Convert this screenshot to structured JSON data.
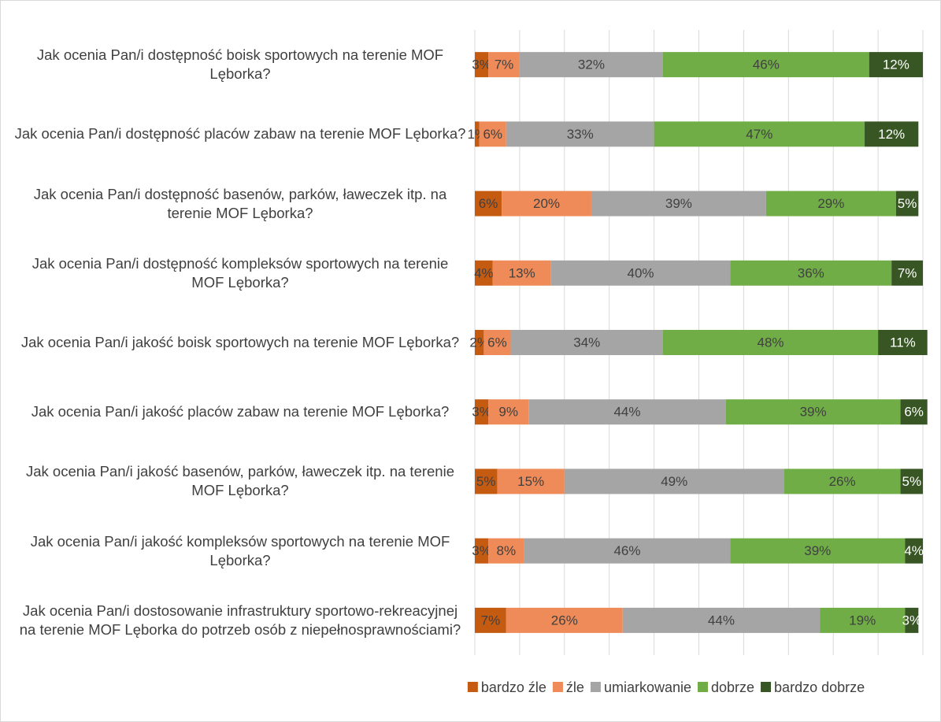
{
  "chart_data": {
    "type": "stacked_bar_horizontal",
    "categories": [
      "Jak ocenia Pan/i dostępność boisk sportowych na terenie MOF Lęborka?",
      "Jak ocenia Pan/i dostępność placów zabaw na terenie MOF Lęborka?",
      "Jak ocenia Pan/i dostępność basenów, parków, ławeczek itp. na terenie MOF Lęborka?",
      "Jak ocenia Pan/i dostępność kompleksów sportowych na terenie MOF Lęborka?",
      "Jak ocenia Pan/i jakość boisk sportowych na terenie MOF Lęborka?",
      "Jak ocenia Pan/i jakość placów zabaw na terenie MOF Lęborka?",
      "Jak ocenia Pan/i jakość basenów, parków, ławeczek itp. na terenie MOF Lęborka?",
      "Jak ocenia Pan/i jakość kompleksów sportowych na terenie MOF Lęborka?",
      "Jak ocenia Pan/i dostosowanie infrastruktury sportowo-rekreacyjnej na terenie MOF Lęborka do potrzeb osób z niepełnosprawnościami?"
    ],
    "series": [
      {
        "name": "bardzo źle",
        "color": "#c55a11",
        "label_color": "#404040",
        "values": [
          3,
          1,
          6,
          4,
          2,
          3,
          5,
          3,
          7
        ],
        "value_labels": [
          "3%",
          "1%",
          "6%",
          "4%",
          "2%",
          "3%",
          "5%",
          "3%",
          "7%"
        ]
      },
      {
        "name": "źle",
        "color": "#ef8b58",
        "label_color": "#404040",
        "values": [
          7,
          6,
          20,
          13,
          6,
          9,
          15,
          8,
          26
        ],
        "value_labels": [
          "7%",
          "6%",
          "20%",
          "13%",
          "6%",
          "9%",
          "15%",
          "8%",
          "26%"
        ]
      },
      {
        "name": "umiarkowanie",
        "color": "#a5a5a5",
        "label_color": "#404040",
        "values": [
          32,
          33,
          39,
          40,
          34,
          44,
          49,
          46,
          44
        ],
        "value_labels": [
          "32%",
          "33%",
          "39%",
          "40%",
          "34%",
          "44%",
          "49%",
          "46%",
          "44%"
        ]
      },
      {
        "name": "dobrze",
        "color": "#70ad47",
        "label_color": "#404040",
        "values": [
          46,
          47,
          29,
          36,
          48,
          39,
          26,
          39,
          19
        ],
        "value_labels": [
          "46%",
          "47%",
          "29%",
          "36%",
          "48%",
          "39%",
          "26%",
          "39%",
          "19%"
        ]
      },
      {
        "name": "bardzo dobrze",
        "color": "#375623",
        "label_color": "#ffffff",
        "values": [
          12,
          12,
          5,
          7,
          11,
          6,
          5,
          4,
          3
        ],
        "value_labels": [
          "12%",
          "12%",
          "5%",
          "7%",
          "11%",
          "6%",
          "5%",
          "4%",
          "3%"
        ]
      }
    ],
    "xlim": [
      0,
      100
    ],
    "xticks": [
      0,
      10,
      20,
      30,
      40,
      50,
      60,
      70,
      80,
      90,
      100
    ],
    "grid": true,
    "legend": "bottom"
  }
}
